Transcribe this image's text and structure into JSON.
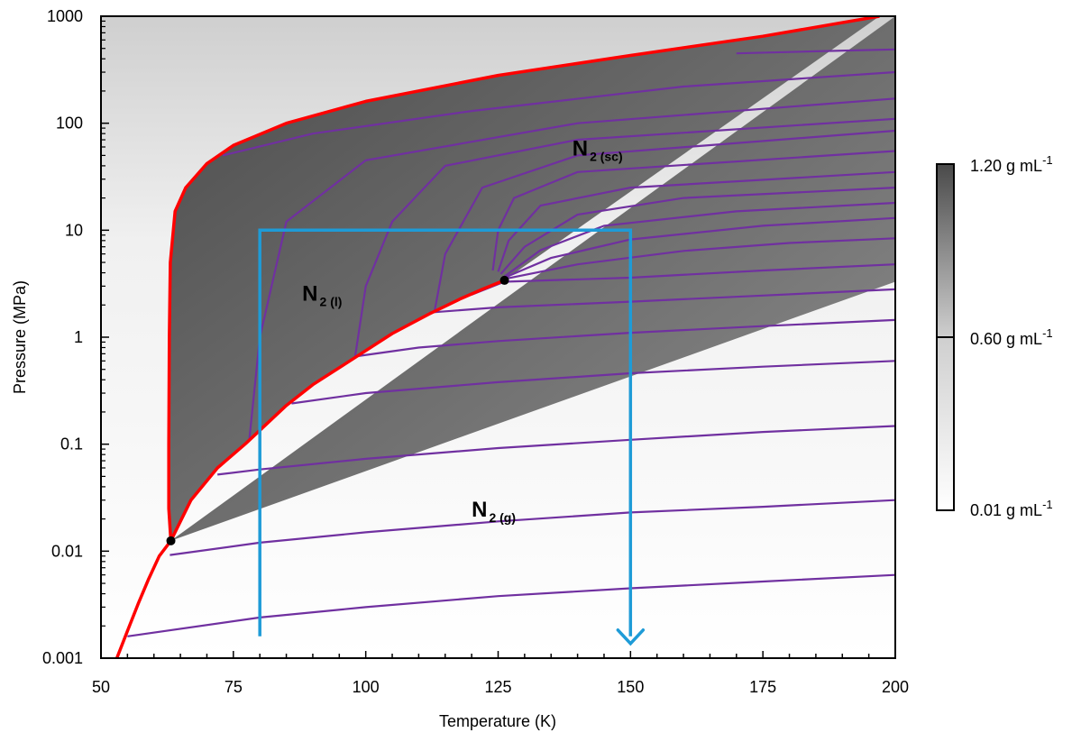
{
  "chart_data": {
    "type": "line",
    "title": "",
    "xlabel": "Temperature (K)",
    "ylabel": "Pressure (MPa)",
    "xlim": [
      50,
      200
    ],
    "ylim": [
      0.001,
      1000
    ],
    "yscale": "log",
    "grid": false,
    "x_ticks": [
      50,
      75,
      100,
      125,
      150,
      175,
      200
    ],
    "x_tick_labels": [
      "50",
      "75",
      "100",
      "125",
      "150",
      "175",
      "200"
    ],
    "y_ticks": [
      0.001,
      0.01,
      0.1,
      1,
      10,
      100,
      1000
    ],
    "y_tick_labels": [
      "0.001",
      "0.01",
      "0.1",
      "1",
      "10",
      "100",
      "1000"
    ],
    "phase_labels": [
      {
        "main": "N",
        "sub": "2 (l)",
        "T": 88,
        "P": 2.2
      },
      {
        "main": "N",
        "sub": "2 (sc)",
        "T": 139,
        "P": 50
      },
      {
        "main": "N",
        "sub": "2 (g)",
        "T": 120,
        "P": 0.021
      }
    ],
    "points": [
      {
        "name": "triple point",
        "T": 63.2,
        "P": 0.0125
      },
      {
        "name": "critical point",
        "T": 126.2,
        "P": 3.4
      }
    ],
    "phase_boundary": {
      "color": "#ff0000",
      "sublimation": [
        [
          53,
          0.001
        ],
        [
          55,
          0.0018
        ],
        [
          57,
          0.0032
        ],
        [
          59,
          0.0055
        ],
        [
          61,
          0.009
        ],
        [
          63.2,
          0.0125
        ]
      ],
      "melting": [
        [
          63.2,
          0.0125
        ],
        [
          62.8,
          0.025
        ],
        [
          62.8,
          0.1
        ],
        [
          62.9,
          1
        ],
        [
          63.1,
          5
        ],
        [
          64,
          15
        ],
        [
          66,
          25
        ],
        [
          70,
          42
        ],
        [
          75,
          62
        ],
        [
          85,
          100
        ],
        [
          100,
          160
        ],
        [
          125,
          280
        ],
        [
          150,
          430
        ],
        [
          175,
          650
        ],
        [
          197,
          1000
        ]
      ],
      "boiling": [
        [
          63.2,
          0.0125
        ],
        [
          67,
          0.03
        ],
        [
          72,
          0.06
        ],
        [
          77.3,
          0.101
        ],
        [
          85,
          0.23
        ],
        [
          90,
          0.36
        ],
        [
          97,
          0.6
        ],
        [
          105,
          1.08
        ],
        [
          112,
          1.65
        ],
        [
          118,
          2.3
        ],
        [
          122,
          2.8
        ],
        [
          126.2,
          3.4
        ]
      ]
    },
    "isochores": {
      "color": "#7030a0",
      "lines": [
        [
          [
            55,
            0.0016
          ],
          [
            80,
            0.0024
          ],
          [
            100,
            0.003
          ],
          [
            125,
            0.0038
          ],
          [
            150,
            0.0045
          ],
          [
            175,
            0.0052
          ],
          [
            200,
            0.006
          ]
        ],
        [
          [
            63,
            0.0092
          ],
          [
            80,
            0.012
          ],
          [
            100,
            0.015
          ],
          [
            125,
            0.019
          ],
          [
            150,
            0.023
          ],
          [
            175,
            0.026
          ],
          [
            200,
            0.03
          ]
        ],
        [
          [
            72,
            0.052
          ],
          [
            80,
            0.058
          ],
          [
            100,
            0.073
          ],
          [
            125,
            0.092
          ],
          [
            150,
            0.11
          ],
          [
            175,
            0.13
          ],
          [
            200,
            0.148
          ]
        ],
        [
          [
            86,
            0.24
          ],
          [
            100,
            0.3
          ],
          [
            125,
            0.38
          ],
          [
            150,
            0.46
          ],
          [
            175,
            0.53
          ],
          [
            200,
            0.6
          ]
        ],
        [
          [
            98,
            0.66
          ],
          [
            110,
            0.8
          ],
          [
            125,
            0.92
          ],
          [
            150,
            1.1
          ],
          [
            175,
            1.27
          ],
          [
            200,
            1.45
          ]
        ],
        [
          [
            112,
            1.7
          ],
          [
            125,
            1.9
          ],
          [
            150,
            2.15
          ],
          [
            175,
            2.45
          ],
          [
            200,
            2.8
          ]
        ],
        [
          [
            120,
            2.5
          ],
          [
            126.2,
            3.3
          ],
          [
            150,
            3.6
          ],
          [
            175,
            4.2
          ],
          [
            200,
            4.8
          ]
        ],
        [
          [
            126.2,
            3.5
          ],
          [
            140,
            4.8
          ],
          [
            160,
            6.4
          ],
          [
            180,
            7.6
          ],
          [
            200,
            8.4
          ]
        ],
        [
          [
            126.2,
            3.6
          ],
          [
            135,
            5.5
          ],
          [
            150,
            8.2
          ],
          [
            175,
            11
          ],
          [
            200,
            13
          ]
        ],
        [
          [
            126.2,
            3.7
          ],
          [
            133,
            6.5
          ],
          [
            145,
            11
          ],
          [
            170,
            15
          ],
          [
            200,
            18
          ]
        ],
        [
          [
            125.5,
            3.9
          ],
          [
            130,
            7
          ],
          [
            140,
            14
          ],
          [
            160,
            20
          ],
          [
            200,
            25
          ]
        ],
        [
          [
            125,
            4.1
          ],
          [
            127,
            8
          ],
          [
            133,
            17
          ],
          [
            150,
            25
          ],
          [
            200,
            35
          ]
        ],
        [
          [
            124,
            4.2
          ],
          [
            125,
            10
          ],
          [
            128,
            20
          ],
          [
            140,
            35
          ],
          [
            200,
            55
          ]
        ],
        [
          [
            113,
            1.75
          ],
          [
            115,
            6
          ],
          [
            122,
            25
          ],
          [
            140,
            50
          ],
          [
            200,
            85
          ]
        ],
        [
          [
            98,
            0.66
          ],
          [
            100,
            3
          ],
          [
            105,
            12
          ],
          [
            115,
            40
          ],
          [
            140,
            70
          ],
          [
            200,
            110
          ]
        ],
        [
          [
            78,
            0.11
          ],
          [
            80,
            1
          ],
          [
            85,
            12
          ],
          [
            100,
            45
          ],
          [
            140,
            100
          ],
          [
            200,
            170
          ]
        ],
        [
          [
            73,
            50
          ],
          [
            90,
            80
          ],
          [
            120,
            130
          ],
          [
            160,
            220
          ],
          [
            200,
            300
          ]
        ],
        [
          [
            170,
            450
          ],
          [
            185,
            470
          ],
          [
            200,
            490
          ]
        ]
      ]
    },
    "path": {
      "color": "#1e9bd7",
      "points": [
        [
          80,
          0.0016
        ],
        [
          80,
          10
        ],
        [
          150,
          10
        ],
        [
          150,
          0.0016
        ]
      ],
      "arrow_end": true
    },
    "colorbar": {
      "labels": [
        {
          "value": 1.2,
          "text": "1.20 g mL",
          "sup": "-1"
        },
        {
          "value": 0.6,
          "text": "0.60 g mL",
          "sup": "-1"
        },
        {
          "value": 0.01,
          "text": "0.01 g mL",
          "sup": "-1"
        }
      ],
      "color_high": "#4a4a4a",
      "color_low": "#ffffff"
    }
  }
}
